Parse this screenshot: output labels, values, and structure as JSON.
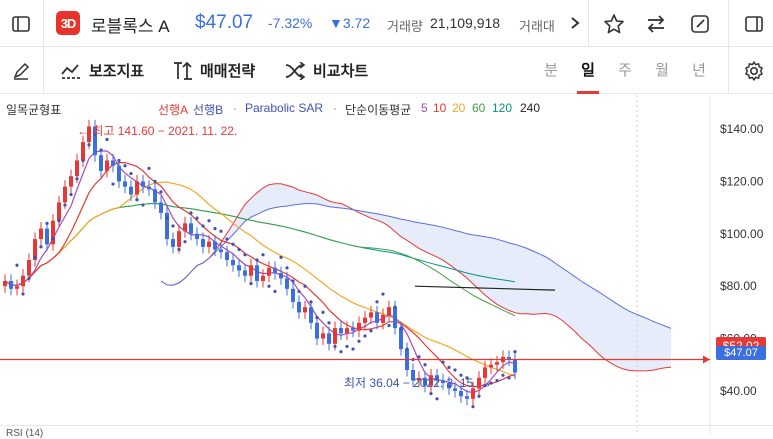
{
  "header": {
    "logo_text": "3D",
    "stock_name": "로블록스 A",
    "price": "$47.07",
    "change_pct": "-7.32%",
    "change_abs": "▼3.72",
    "volume_label": "거래량",
    "volume_value": "21,109,918",
    "amount_label_partial": "거래대",
    "icons": [
      "sidebar-left-icon",
      "chevron-right-icon",
      "star-icon",
      "swap-icon",
      "edit-icon",
      "sidebar-right-icon"
    ]
  },
  "toolbar": {
    "aux_indicator_label": "보조지표",
    "trade_strategy_label": "매매전략",
    "compare_chart_label": "비교차트",
    "periods": [
      "분",
      "일",
      "주",
      "월",
      "년"
    ],
    "active_period": "일"
  },
  "legend": {
    "indicator_name": "일목균형표",
    "span_a": "선행A",
    "span_b": "선행B",
    "sar": "Parabolic SAR",
    "ma_label": "단순이동평균",
    "ma_periods": [
      "5",
      "10",
      "20",
      "60",
      "120",
      "240"
    ],
    "colors": {
      "span_a": "#e53935",
      "span_b": "#5b6ee1",
      "sar": "#3f51b5",
      "ma5": "#ab47bc",
      "ma10": "#e53935",
      "ma20": "#f5a623",
      "ma60": "#43a047",
      "ma120": "#009688",
      "ma240": "#222222"
    }
  },
  "annotations": {
    "high_label": "← 최고 141.60 − 2021. 11. 22.",
    "low_label": "최저 36.04 − 2022. 3. 15. →"
  },
  "chart_data": {
    "type": "candlestick",
    "y_ticks": [
      "$140.00",
      "$120.00",
      "$100.00",
      "$80.00",
      "$60.00",
      "$40.00"
    ],
    "y_tick_values": [
      140,
      120,
      100,
      80,
      60,
      40
    ],
    "ylim": [
      27,
      153
    ],
    "current_price_badge": "$52.02",
    "last_price_badge": "$47.07",
    "high": 141.6,
    "low": 36.04,
    "closes": [
      82,
      79,
      80,
      84,
      90,
      98,
      102,
      96,
      105,
      112,
      118,
      122,
      128,
      135,
      141,
      130,
      124,
      128,
      126,
      120,
      118,
      115,
      120,
      118,
      117,
      112,
      108,
      98,
      95,
      101,
      104,
      100,
      98,
      95,
      97,
      94,
      93,
      90,
      88,
      86,
      84,
      88,
      82,
      84,
      87,
      85,
      83,
      79,
      74,
      70,
      72,
      66,
      60,
      62,
      58,
      64,
      62,
      64,
      63,
      66,
      68,
      70,
      66,
      69,
      72,
      64,
      56,
      48,
      44,
      45,
      42,
      46,
      44,
      43,
      41,
      40,
      38,
      37,
      41,
      45,
      49,
      50,
      51,
      53,
      52,
      47
    ]
  },
  "rsi_label": "RSI (14)"
}
